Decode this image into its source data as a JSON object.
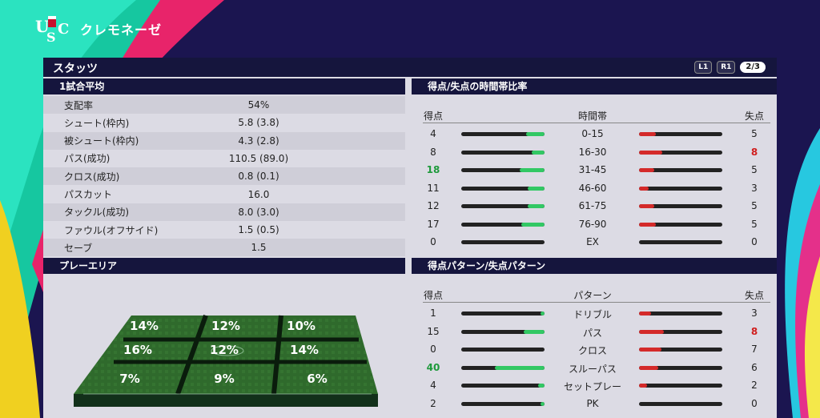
{
  "club": {
    "name": "クレモネーゼ",
    "crest_letters": "USC"
  },
  "panel": {
    "title": "スタッツ",
    "nav": {
      "l1": "L1",
      "r1": "R1",
      "page": "2/3"
    }
  },
  "match_avg": {
    "title": "1試合平均",
    "rows": [
      {
        "label": "支配率",
        "value": "54%"
      },
      {
        "label": "シュート(枠内)",
        "value": "5.8 (3.8)"
      },
      {
        "label": "被シュート(枠内)",
        "value": "4.3 (2.8)"
      },
      {
        "label": "パス(成功)",
        "value": "110.5 (89.0)"
      },
      {
        "label": "クロス(成功)",
        "value": "0.8 (0.1)"
      },
      {
        "label": "パスカット",
        "value": "16.0"
      },
      {
        "label": "タックル(成功)",
        "value": "8.0 (3.0)"
      },
      {
        "label": "ファウル(オフサイド)",
        "value": "1.5 (0.5)"
      },
      {
        "label": "セーブ",
        "value": "1.5"
      }
    ]
  },
  "play_area": {
    "title": "プレーエリア",
    "cells": [
      "14%",
      "12%",
      "10%",
      "16%",
      "12%",
      "14%",
      "7%",
      "9%",
      "6%"
    ]
  },
  "time_ratio": {
    "title": "得点/失点の時間帯比率",
    "head": {
      "scored": "得点",
      "label": "時間帯",
      "conceded": "失点"
    },
    "rows": [
      {
        "scored": "4",
        "label": "0-15",
        "conceded": "5",
        "scored_frac": 0.22,
        "conceded_frac": 0.2
      },
      {
        "scored": "8",
        "label": "16-30",
        "conceded": "8",
        "scored_frac": 0.15,
        "conceded_frac": 0.28
      },
      {
        "scored": "18",
        "label": "31-45",
        "conceded": "5",
        "scored_frac": 0.3,
        "conceded_frac": 0.18
      },
      {
        "scored": "11",
        "label": "46-60",
        "conceded": "3",
        "scored_frac": 0.2,
        "conceded_frac": 0.12
      },
      {
        "scored": "12",
        "label": "61-75",
        "conceded": "5",
        "scored_frac": 0.2,
        "conceded_frac": 0.18
      },
      {
        "scored": "17",
        "label": "76-90",
        "conceded": "5",
        "scored_frac": 0.28,
        "conceded_frac": 0.2
      },
      {
        "scored": "0",
        "label": "EX",
        "conceded": "0",
        "scored_frac": 0,
        "conceded_frac": 0
      }
    ],
    "highlight_scored_index": 2,
    "highlight_conceded_index": 1
  },
  "pattern": {
    "title": "得点パターン/失点パターン",
    "head": {
      "scored": "得点",
      "label": "パターン",
      "conceded": "失点"
    },
    "rows": [
      {
        "scored": "1",
        "label": "ドリブル",
        "conceded": "3",
        "scored_frac": 0.05,
        "conceded_frac": 0.14
      },
      {
        "scored": "15",
        "label": "パス",
        "conceded": "8",
        "scored_frac": 0.25,
        "conceded_frac": 0.3
      },
      {
        "scored": "0",
        "label": "クロス",
        "conceded": "7",
        "scored_frac": 0,
        "conceded_frac": 0.27
      },
      {
        "scored": "40",
        "label": "スルーパス",
        "conceded": "6",
        "scored_frac": 0.6,
        "conceded_frac": 0.23
      },
      {
        "scored": "4",
        "label": "セットプレー",
        "conceded": "2",
        "scored_frac": 0.08,
        "conceded_frac": 0.1
      },
      {
        "scored": "2",
        "label": "PK",
        "conceded": "0",
        "scored_frac": 0.05,
        "conceded_frac": 0
      }
    ],
    "highlight_scored_index": 3,
    "highlight_conceded_index": 1
  },
  "colors": {
    "scored_bar": "#32c864",
    "conceded_bar": "#d42a2a",
    "panel_bg": "#dcdbe4",
    "header_bg": "#15153d"
  }
}
